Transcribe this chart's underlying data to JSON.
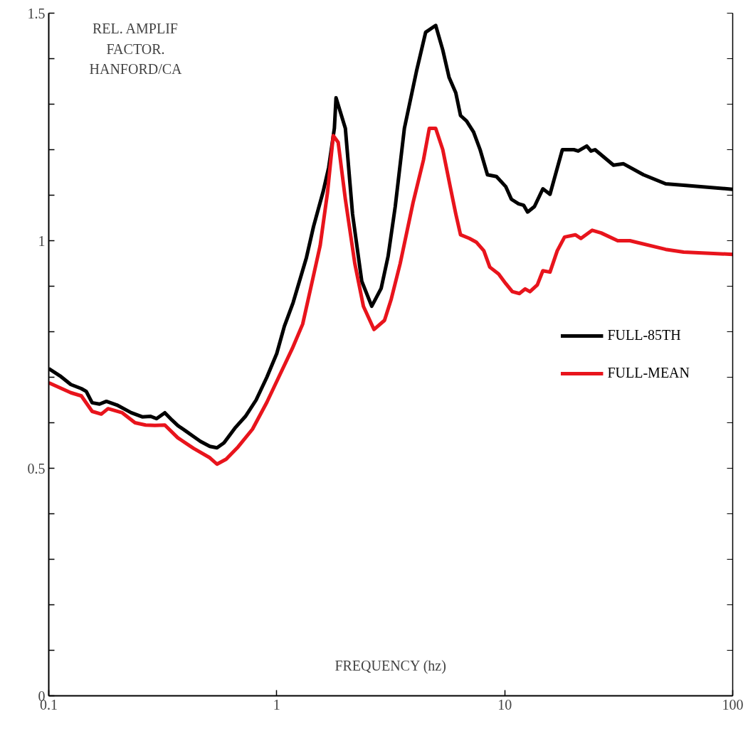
{
  "chart_data": {
    "type": "line",
    "xlabel": "FREQUENCY (hz)",
    "annotations": [
      "REL. AMPLIF\nFACTOR.\nHANFORD/CA"
    ],
    "log": "x",
    "xlim": [
      0.1,
      100
    ],
    "xticks": [
      0.1,
      1,
      10,
      100
    ],
    "ylim": [
      0,
      1.5
    ],
    "yticks": [
      0,
      {
        "value": 0.1,
        "label": null
      },
      {
        "value": 0.2,
        "label": null
      },
      {
        "value": 0.3,
        "label": null
      },
      {
        "value": 0.4,
        "label": null
      },
      0.5,
      {
        "value": 0.6,
        "label": null
      },
      {
        "value": 0.7,
        "label": null
      },
      {
        "value": 0.8,
        "label": null
      },
      {
        "value": 0.9,
        "label": null
      },
      1,
      {
        "value": 1.1,
        "label": null
      },
      {
        "value": 1.2,
        "label": null
      },
      {
        "value": 1.3,
        "label": null
      },
      {
        "value": 1.4,
        "label": null
      },
      1.5
    ],
    "grid": false,
    "legend": "right",
    "marker": "none",
    "line_style": "solid",
    "series": [
      {
        "name": "FULL-85TH",
        "color": "#000000",
        "x": [
          0.1,
          0.112,
          0.125,
          0.139,
          0.146,
          0.155,
          0.167,
          0.179,
          0.199,
          0.23,
          0.257,
          0.28,
          0.297,
          0.323,
          0.347,
          0.368,
          0.401,
          0.431,
          0.463,
          0.509,
          0.547,
          0.587,
          0.655,
          0.729,
          0.812,
          0.905,
          1.0,
          1.08,
          1.18,
          1.35,
          1.45,
          1.6,
          1.69,
          1.79,
          1.82,
          2.0,
          2.15,
          2.36,
          2.61,
          2.87,
          3.08,
          3.31,
          3.63,
          4.1,
          4.5,
          4.98,
          5.35,
          5.7,
          6.1,
          6.4,
          6.8,
          7.3,
          7.8,
          8.4,
          9.2,
          10.1,
          10.7,
          11.5,
          12.1,
          12.6,
          13.5,
          14.7,
          15.8,
          17.9,
          20.1,
          21.0,
          22.9,
          23.9,
          24.9,
          30.0,
          33.2,
          40.6,
          50.8,
          60.9,
          100
        ],
        "values": [
          0.719,
          0.703,
          0.684,
          0.675,
          0.669,
          0.644,
          0.641,
          0.647,
          0.639,
          0.622,
          0.613,
          0.614,
          0.609,
          0.622,
          0.606,
          0.594,
          0.581,
          0.57,
          0.559,
          0.548,
          0.545,
          0.556,
          0.588,
          0.614,
          0.65,
          0.7,
          0.752,
          0.812,
          0.864,
          0.963,
          1.031,
          1.109,
          1.161,
          1.247,
          1.314,
          1.247,
          1.059,
          0.911,
          0.856,
          0.895,
          0.966,
          1.075,
          1.247,
          1.372,
          1.458,
          1.473,
          1.419,
          1.359,
          1.325,
          1.275,
          1.263,
          1.239,
          1.2,
          1.145,
          1.141,
          1.119,
          1.091,
          1.081,
          1.078,
          1.063,
          1.075,
          1.114,
          1.102,
          1.2,
          1.2,
          1.197,
          1.208,
          1.197,
          1.2,
          1.166,
          1.169,
          1.145,
          1.125,
          1.122,
          1.113
        ]
      },
      {
        "name": "FULL-MEAN",
        "color": "#e8141c",
        "x": [
          0.1,
          0.125,
          0.139,
          0.155,
          0.17,
          0.182,
          0.21,
          0.239,
          0.266,
          0.292,
          0.323,
          0.368,
          0.431,
          0.509,
          0.547,
          0.6,
          0.677,
          0.783,
          0.905,
          1.02,
          1.17,
          1.3,
          1.42,
          1.55,
          1.67,
          1.77,
          1.86,
          2.0,
          2.2,
          2.4,
          2.67,
          2.97,
          3.18,
          3.48,
          3.96,
          4.4,
          4.67,
          4.98,
          5.35,
          5.75,
          6.1,
          6.4,
          7.0,
          7.5,
          8.1,
          8.6,
          9.4,
          10.1,
          10.8,
          11.6,
          12.3,
          12.9,
          13.9,
          14.7,
          15.8,
          17.0,
          18.3,
          20.4,
          21.6,
          24.2,
          26.5,
          31.3,
          35.4,
          50.8,
          60.9,
          100
        ],
        "values": [
          0.688,
          0.666,
          0.659,
          0.625,
          0.619,
          0.631,
          0.622,
          0.6,
          0.595,
          0.594,
          0.595,
          0.567,
          0.544,
          0.523,
          0.509,
          0.52,
          0.547,
          0.586,
          0.645,
          0.7,
          0.763,
          0.817,
          0.903,
          0.989,
          1.106,
          1.231,
          1.216,
          1.091,
          0.95,
          0.856,
          0.805,
          0.825,
          0.872,
          0.95,
          1.083,
          1.177,
          1.247,
          1.247,
          1.2,
          1.122,
          1.059,
          1.013,
          1.005,
          0.997,
          0.978,
          0.942,
          0.927,
          0.906,
          0.888,
          0.884,
          0.894,
          0.888,
          0.903,
          0.934,
          0.931,
          0.978,
          1.008,
          1.013,
          1.005,
          1.023,
          1.017,
          1.0,
          1.0,
          0.981,
          0.975,
          0.97
        ]
      }
    ]
  }
}
